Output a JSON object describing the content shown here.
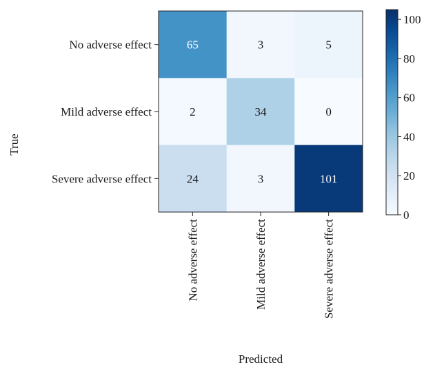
{
  "chart_data": {
    "type": "heatmap",
    "title": "",
    "xlabel": "Predicted",
    "ylabel": "True",
    "rows": [
      "No adverse effect",
      "Mild adverse effect",
      "Severe adverse effect"
    ],
    "columns": [
      "No adverse effect",
      "Mild adverse effect",
      "Severe adverse effect"
    ],
    "values": [
      [
        65,
        3,
        5
      ],
      [
        2,
        34,
        0
      ],
      [
        24,
        3,
        101
      ]
    ],
    "colorbar": {
      "range": [
        0,
        105
      ],
      "ticks": [
        "0",
        "20",
        "40",
        "60",
        "80",
        "100"
      ],
      "colormap": "Blues"
    },
    "colors": {
      "low": "#f7fbff",
      "high": "#08306b"
    }
  }
}
